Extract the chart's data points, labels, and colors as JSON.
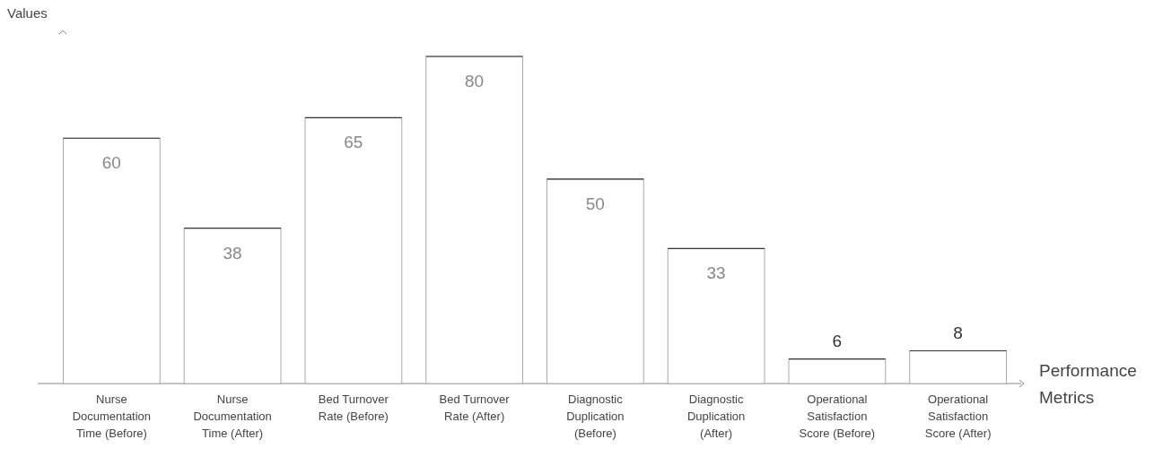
{
  "chart_data": {
    "type": "bar",
    "xlabel": "Performance Metrics",
    "ylabel": "Values",
    "categories": [
      "Nurse Documentation Time (Before)",
      "Nurse Documentation Time (After)",
      "Bed Turnover Rate (Before)",
      "Bed Turnover Rate (After)",
      "Diagnostic Duplication (Before)",
      "Diagnostic Duplication (After)",
      "Operational Satisfaction Score (Before)",
      "Operational Satisfaction Score (After)"
    ],
    "values": [
      60,
      38,
      65,
      80,
      50,
      33,
      6,
      8
    ],
    "color": "#ffffff",
    "data_labels": true
  }
}
